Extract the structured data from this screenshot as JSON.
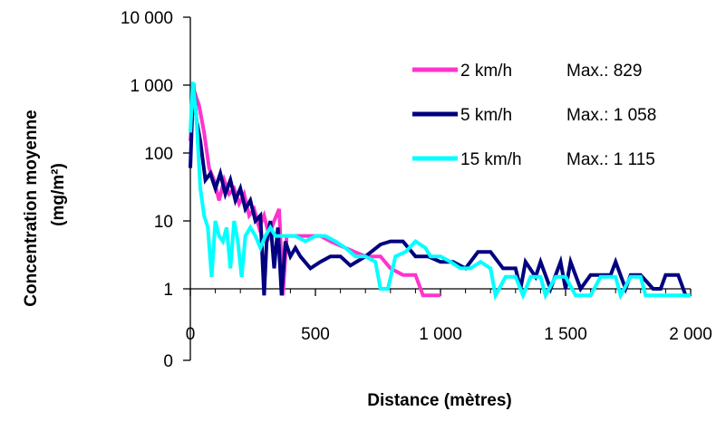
{
  "chart_data": {
    "type": "line",
    "xlabel": "Distance (mètres)",
    "ylabel_line1": "Concentration moyenne",
    "ylabel_line2": "(mg/m²)",
    "y_scale": "log",
    "xlim": [
      0,
      2000
    ],
    "x_ticks": [
      0,
      500,
      1000,
      1500,
      2000
    ],
    "x_tick_labels": [
      "0",
      "500",
      "1 000",
      "1 500",
      "2 000"
    ],
    "y_ticks": [
      1,
      10,
      100,
      1000,
      10000
    ],
    "y_tick_labels": [
      "1",
      "10",
      "100",
      "1 000",
      "10 000"
    ],
    "y_zero_label": "0",
    "grid": false,
    "legend_position": "top-right",
    "series": [
      {
        "name": "2 km/h",
        "max_label": "Max.: 829",
        "color": "#ff33cc",
        "points": [
          [
            0,
            150
          ],
          [
            15,
            829
          ],
          [
            35,
            500
          ],
          [
            55,
            200
          ],
          [
            75,
            60
          ],
          [
            95,
            40
          ],
          [
            115,
            20
          ],
          [
            135,
            40
          ],
          [
            155,
            25
          ],
          [
            175,
            30
          ],
          [
            195,
            18
          ],
          [
            215,
            25
          ],
          [
            235,
            12
          ],
          [
            255,
            15
          ],
          [
            275,
            8
          ],
          [
            295,
            12
          ],
          [
            315,
            6
          ],
          [
            335,
            10
          ],
          [
            355,
            15
          ],
          [
            370,
            0.8
          ],
          [
            385,
            6
          ],
          [
            420,
            6
          ],
          [
            470,
            6
          ],
          [
            520,
            6
          ],
          [
            560,
            5
          ],
          [
            620,
            4
          ],
          [
            700,
            3
          ],
          [
            760,
            3
          ],
          [
            800,
            2
          ],
          [
            850,
            1.6
          ],
          [
            900,
            1.6
          ],
          [
            930,
            0.8
          ],
          [
            1000,
            0.8
          ]
        ]
      },
      {
        "name": "5 km/h",
        "max_label": "Max.: 1 058",
        "color": "#000080",
        "points": [
          [
            0,
            60
          ],
          [
            12,
            1058
          ],
          [
            25,
            300
          ],
          [
            40,
            150
          ],
          [
            60,
            40
          ],
          [
            80,
            50
          ],
          [
            100,
            30
          ],
          [
            120,
            50
          ],
          [
            140,
            25
          ],
          [
            160,
            40
          ],
          [
            180,
            20
          ],
          [
            200,
            30
          ],
          [
            220,
            15
          ],
          [
            240,
            20
          ],
          [
            260,
            10
          ],
          [
            280,
            12
          ],
          [
            295,
            0.8
          ],
          [
            305,
            5
          ],
          [
            320,
            10
          ],
          [
            335,
            2
          ],
          [
            350,
            8
          ],
          [
            365,
            0.8
          ],
          [
            380,
            5
          ],
          [
            400,
            3
          ],
          [
            420,
            4
          ],
          [
            440,
            3
          ],
          [
            480,
            2
          ],
          [
            520,
            2.5
          ],
          [
            560,
            3
          ],
          [
            600,
            3
          ],
          [
            640,
            2.2
          ],
          [
            700,
            3
          ],
          [
            760,
            4.5
          ],
          [
            800,
            5
          ],
          [
            850,
            5
          ],
          [
            900,
            3
          ],
          [
            950,
            3
          ],
          [
            1000,
            2.5
          ],
          [
            1050,
            2.5
          ],
          [
            1100,
            2
          ],
          [
            1150,
            3.5
          ],
          [
            1200,
            3.5
          ],
          [
            1250,
            2
          ],
          [
            1300,
            2
          ],
          [
            1320,
            1
          ],
          [
            1340,
            2.5
          ],
          [
            1380,
            1.5
          ],
          [
            1400,
            2.5
          ],
          [
            1440,
            1
          ],
          [
            1480,
            2.5
          ],
          [
            1500,
            1
          ],
          [
            1520,
            2.5
          ],
          [
            1560,
            1
          ],
          [
            1600,
            1.6
          ],
          [
            1640,
            1.6
          ],
          [
            1680,
            1.6
          ],
          [
            1700,
            2.5
          ],
          [
            1740,
            1
          ],
          [
            1760,
            1.6
          ],
          [
            1800,
            1.6
          ],
          [
            1850,
            1
          ],
          [
            1880,
            1
          ],
          [
            1900,
            1.6
          ],
          [
            1950,
            1.6
          ],
          [
            1980,
            0.8
          ],
          [
            2000,
            0.8
          ]
        ]
      },
      {
        "name": "15 km/h",
        "max_label": "Max.: 1 115",
        "color": "#00ffff",
        "points": [
          [
            0,
            200
          ],
          [
            10,
            1115
          ],
          [
            25,
            300
          ],
          [
            40,
            30
          ],
          [
            55,
            12
          ],
          [
            70,
            8
          ],
          [
            85,
            1.5
          ],
          [
            100,
            10
          ],
          [
            115,
            6
          ],
          [
            130,
            5
          ],
          [
            145,
            8
          ],
          [
            160,
            2
          ],
          [
            175,
            10
          ],
          [
            190,
            5
          ],
          [
            205,
            1.5
          ],
          [
            220,
            6
          ],
          [
            240,
            8
          ],
          [
            260,
            6
          ],
          [
            280,
            4
          ],
          [
            300,
            6
          ],
          [
            320,
            8
          ],
          [
            340,
            6
          ],
          [
            360,
            6
          ],
          [
            380,
            6
          ],
          [
            420,
            6
          ],
          [
            460,
            5
          ],
          [
            500,
            6
          ],
          [
            540,
            6
          ],
          [
            580,
            5
          ],
          [
            620,
            4
          ],
          [
            660,
            3
          ],
          [
            700,
            3
          ],
          [
            740,
            2.5
          ],
          [
            760,
            1
          ],
          [
            790,
            1
          ],
          [
            820,
            3
          ],
          [
            860,
            3.5
          ],
          [
            900,
            5
          ],
          [
            940,
            4
          ],
          [
            960,
            3
          ],
          [
            1000,
            3
          ],
          [
            1040,
            2.5
          ],
          [
            1080,
            2
          ],
          [
            1120,
            2
          ],
          [
            1160,
            2.5
          ],
          [
            1200,
            2
          ],
          [
            1220,
            0.8
          ],
          [
            1260,
            1.5
          ],
          [
            1300,
            1.5
          ],
          [
            1330,
            0.8
          ],
          [
            1360,
            1.5
          ],
          [
            1400,
            1.5
          ],
          [
            1420,
            0.8
          ],
          [
            1460,
            1.5
          ],
          [
            1500,
            1.5
          ],
          [
            1540,
            0.8
          ],
          [
            1600,
            0.8
          ],
          [
            1640,
            1.5
          ],
          [
            1700,
            1.5
          ],
          [
            1720,
            0.8
          ],
          [
            1760,
            1.5
          ],
          [
            1800,
            1.5
          ],
          [
            1820,
            0.8
          ],
          [
            1900,
            0.8
          ],
          [
            2000,
            0.8
          ]
        ]
      }
    ]
  }
}
